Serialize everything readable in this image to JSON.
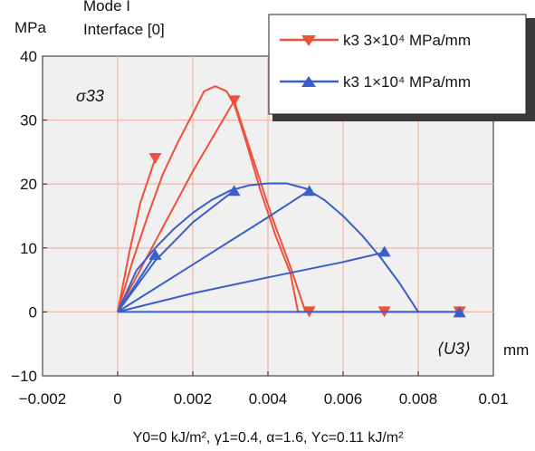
{
  "chart_data": {
    "type": "line",
    "title": "Mode I",
    "subtitle": "Interface [0]",
    "ylabel": "MPa",
    "xlabel": "mm",
    "inner_ylabel": "σ33",
    "inner_xlabel": "⟨U3⟩",
    "caption": "Y0=0 kJ/m², γ1=0.4, α=1.6, Yc=0.11 kJ/m²",
    "xlim": [
      -0.002,
      0.01
    ],
    "ylim": [
      -10,
      40
    ],
    "xticks": [
      -0.002,
      0,
      0.002,
      0.004,
      0.006,
      0.008,
      0.01
    ],
    "xtick_labels": [
      "−0.002",
      "0",
      "0.002",
      "0.004",
      "0.006",
      "0.008",
      "0.01"
    ],
    "yticks": [
      -10,
      0,
      10,
      20,
      30,
      40
    ],
    "ytick_labels": [
      "−10",
      "0",
      "10",
      "20",
      "30",
      "40"
    ],
    "grid": true,
    "grid_color": "#f4b8a8",
    "plot_background": "#f0f0f0",
    "legend_position": "top-right",
    "legend": [
      {
        "label": "k3 3×10⁴ MPa/mm",
        "color": "#f0503a",
        "marker": "triangle-down"
      },
      {
        "label": "k3 1×10⁴ MPa/mm",
        "color": "#3a5fc8",
        "marker": "triangle-up"
      }
    ],
    "series": [
      {
        "color": "#f0503a",
        "marker": "triangle-down",
        "lines": [
          [
            [
              0,
              0
            ],
            [
              0.0003,
              9
            ],
            [
              0.0006,
              17
            ],
            [
              0.001,
              24
            ]
          ],
          [
            [
              0,
              0
            ],
            [
              0.0004,
              8
            ],
            [
              0.0008,
              15
            ],
            [
              0.0012,
              21.5
            ],
            [
              0.0016,
              26.5
            ],
            [
              0.002,
              31
            ],
            [
              0.0023,
              34.5
            ],
            [
              0.0026,
              35.3
            ],
            [
              0.0029,
              34.5
            ],
            [
              0.0031,
              32.5
            ],
            [
              0.0034,
              27
            ],
            [
              0.0038,
              19
            ],
            [
              0.0042,
              12
            ],
            [
              0.0046,
              6
            ],
            [
              0.0048,
              0
            ]
          ],
          [
            [
              0,
              0
            ],
            [
              0.001,
              11
            ],
            [
              0.002,
              22
            ],
            [
              0.0031,
              33
            ],
            [
              0.0036,
              24
            ],
            [
              0.0041,
              15
            ],
            [
              0.0046,
              7
            ],
            [
              0.005,
              0
            ]
          ],
          [
            [
              0.0048,
              0
            ],
            [
              0.0091,
              0
            ]
          ]
        ],
        "markers": [
          [
            0.001,
            24
          ],
          [
            0.0031,
            33
          ],
          [
            0.0051,
            0
          ],
          [
            0.0071,
            0
          ],
          [
            0.0091,
            0
          ]
        ]
      },
      {
        "color": "#3a5fc8",
        "marker": "triangle-up",
        "lines": [
          [
            [
              0,
              0
            ],
            [
              0.0005,
              4.5
            ],
            [
              0.001,
              9
            ]
          ],
          [
            [
              0,
              0
            ],
            [
              0.0005,
              6.5
            ],
            [
              0.001,
              10
            ],
            [
              0.0015,
              13
            ],
            [
              0.002,
              15.5
            ],
            [
              0.0025,
              17.5
            ],
            [
              0.003,
              19
            ],
            [
              0.0035,
              19.8
            ],
            [
              0.004,
              20.1
            ],
            [
              0.0045,
              20.1
            ],
            [
              0.005,
              19.3
            ],
            [
              0.0055,
              17.5
            ],
            [
              0.006,
              15
            ],
            [
              0.0065,
              12
            ],
            [
              0.007,
              8.5
            ],
            [
              0.0075,
              4.5
            ],
            [
              0.008,
              0
            ]
          ],
          [
            [
              0,
              0
            ],
            [
              0.001,
              8
            ],
            [
              0.002,
              14
            ],
            [
              0.0031,
              19
            ]
          ],
          [
            [
              0,
              0
            ],
            [
              0.002,
              7.4
            ],
            [
              0.004,
              14.8
            ],
            [
              0.0051,
              19
            ]
          ],
          [
            [
              0,
              0
            ],
            [
              0.002,
              2.9
            ],
            [
              0.004,
              5.4
            ],
            [
              0.006,
              7.8
            ],
            [
              0.0071,
              9.3
            ]
          ],
          [
            [
              0,
              0
            ],
            [
              0.0091,
              0
            ]
          ]
        ],
        "markers": [
          [
            0.001,
            9
          ],
          [
            0.0031,
            19
          ],
          [
            0.0051,
            19
          ],
          [
            0.0071,
            9.5
          ],
          [
            0.0091,
            0
          ]
        ]
      }
    ]
  }
}
